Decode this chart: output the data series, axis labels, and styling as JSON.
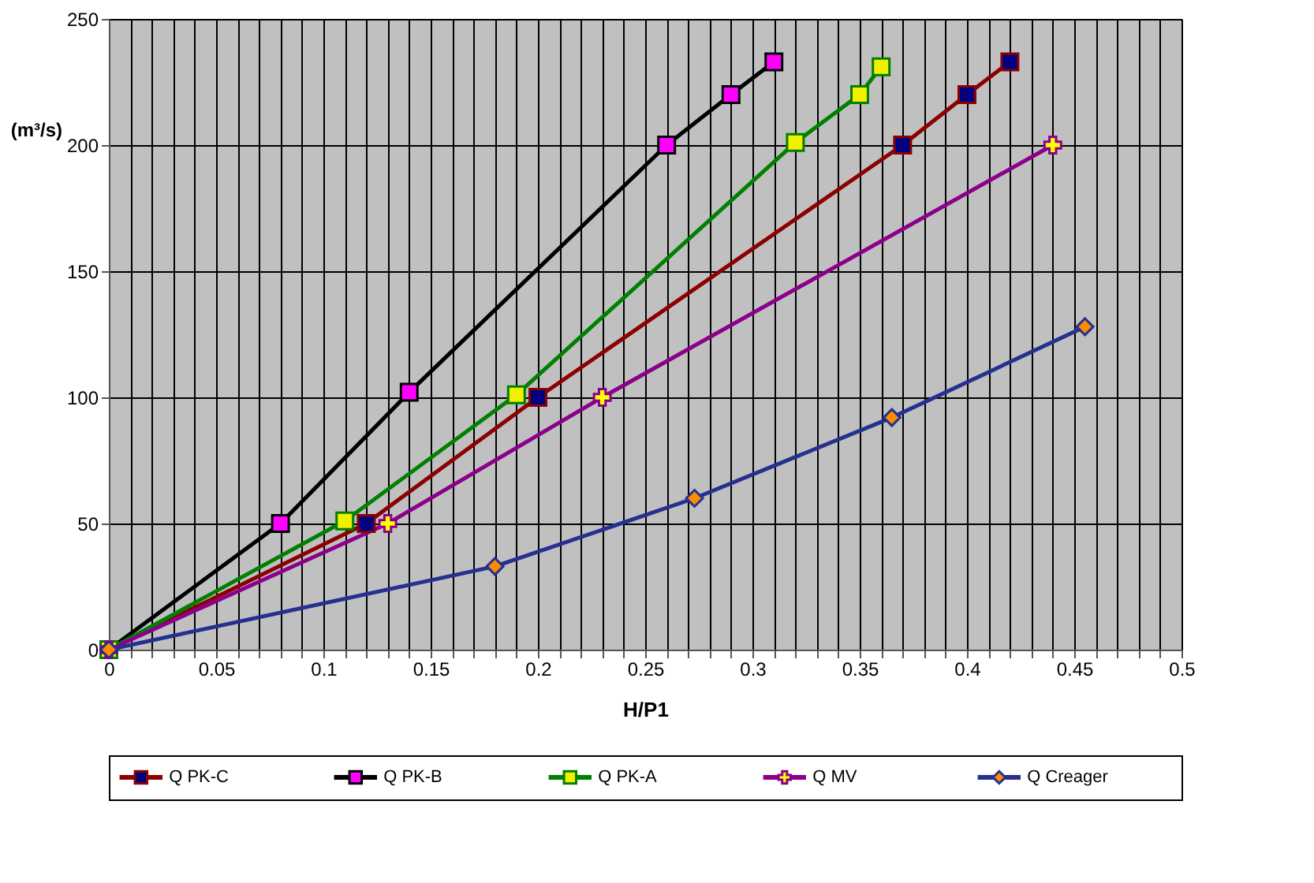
{
  "chart_data": {
    "type": "line",
    "xlabel": "H/P1",
    "ylabel": "(m³/s)",
    "xlim": [
      0,
      0.5
    ],
    "ylim": [
      0,
      250
    ],
    "xticks": [
      0,
      {
        "value": 0.01,
        "label": null
      },
      {
        "value": 0.02,
        "label": null
      },
      {
        "value": 0.03,
        "label": null
      },
      {
        "value": 0.04,
        "label": null
      },
      0.05,
      {
        "value": 0.06,
        "label": null
      },
      {
        "value": 0.07,
        "label": null
      },
      {
        "value": 0.08,
        "label": null
      },
      {
        "value": 0.09,
        "label": null
      },
      0.1,
      {
        "value": 0.11,
        "label": null
      },
      {
        "value": 0.12,
        "label": null
      },
      {
        "value": 0.13,
        "label": null
      },
      {
        "value": 0.14,
        "label": null
      },
      0.15,
      {
        "value": 0.16,
        "label": null
      },
      {
        "value": 0.17,
        "label": null
      },
      {
        "value": 0.18,
        "label": null
      },
      {
        "value": 0.19,
        "label": null
      },
      0.2,
      {
        "value": 0.21,
        "label": null
      },
      {
        "value": 0.22,
        "label": null
      },
      {
        "value": 0.23,
        "label": null
      },
      {
        "value": 0.24,
        "label": null
      },
      0.25,
      {
        "value": 0.26,
        "label": null
      },
      {
        "value": 0.27,
        "label": null
      },
      {
        "value": 0.28,
        "label": null
      },
      {
        "value": 0.29,
        "label": null
      },
      0.3,
      {
        "value": 0.31,
        "label": null
      },
      {
        "value": 0.32,
        "label": null
      },
      {
        "value": 0.33,
        "label": null
      },
      {
        "value": 0.34,
        "label": null
      },
      0.35,
      {
        "value": 0.36,
        "label": null
      },
      {
        "value": 0.37,
        "label": null
      },
      {
        "value": 0.38,
        "label": null
      },
      {
        "value": 0.39,
        "label": null
      },
      0.4,
      {
        "value": 0.41,
        "label": null
      },
      {
        "value": 0.42,
        "label": null
      },
      {
        "value": 0.43,
        "label": null
      },
      {
        "value": 0.44,
        "label": null
      },
      0.45,
      {
        "value": 0.46,
        "label": null
      },
      {
        "value": 0.47,
        "label": null
      },
      {
        "value": 0.48,
        "label": null
      },
      {
        "value": 0.49,
        "label": null
      },
      0.5
    ],
    "yticks": [
      0,
      50,
      100,
      150,
      200,
      250
    ],
    "grid": true,
    "legend": "bottom",
    "line_style": "solid",
    "series": [
      {
        "name": "Q PK-C",
        "color": "#8b0000",
        "marker": "square",
        "x": [
          0,
          0.12,
          0.2,
          0.37,
          0.4,
          0.42
        ],
        "values": [
          0,
          50,
          100,
          200,
          220,
          233
        ],
        "colors": [
          "#000080",
          "#000080",
          "#000080",
          "#000080",
          "#000080",
          "#000080"
        ]
      },
      {
        "name": "Q PK-B",
        "color": "#000000",
        "marker": "square",
        "x": [
          0,
          0.08,
          0.14,
          0.26,
          0.29,
          0.31
        ],
        "values": [
          0,
          50,
          102,
          200,
          220,
          233
        ],
        "colors": [
          "#ff00ff",
          "#ff00ff",
          "#ff00ff",
          "#ff00ff",
          "#ff00ff",
          "#ff00ff"
        ]
      },
      {
        "name": "Q PK-A",
        "color": "#008000",
        "marker": "square",
        "x": [
          0,
          0.11,
          0.19,
          0.32,
          0.35,
          0.36
        ],
        "values": [
          0,
          51,
          101,
          201,
          220,
          231
        ],
        "colors": [
          "#f0f000",
          "#f0f000",
          "#f0f000",
          "#f0f000",
          "#f0f000",
          "#f0f000"
        ]
      },
      {
        "name": "Q MV",
        "color": "#8b008b",
        "marker": "cross",
        "x": [
          0,
          0.13,
          0.23,
          0.44
        ],
        "values": [
          0,
          50,
          100,
          200
        ],
        "colors": [
          "#ffff00",
          "#ffff00",
          "#ffff00",
          "#ffff00"
        ]
      },
      {
        "name": "Q Creager",
        "color": "#26308f",
        "marker": "diamond",
        "x": [
          0,
          0.18,
          0.273,
          0.365,
          0.455
        ],
        "values": [
          0,
          33,
          60,
          92,
          128
        ],
        "colors": [
          "#ff8c00",
          "#ff8c00",
          "#ff8c00",
          "#ff8c00",
          "#ff8c00"
        ]
      }
    ]
  }
}
